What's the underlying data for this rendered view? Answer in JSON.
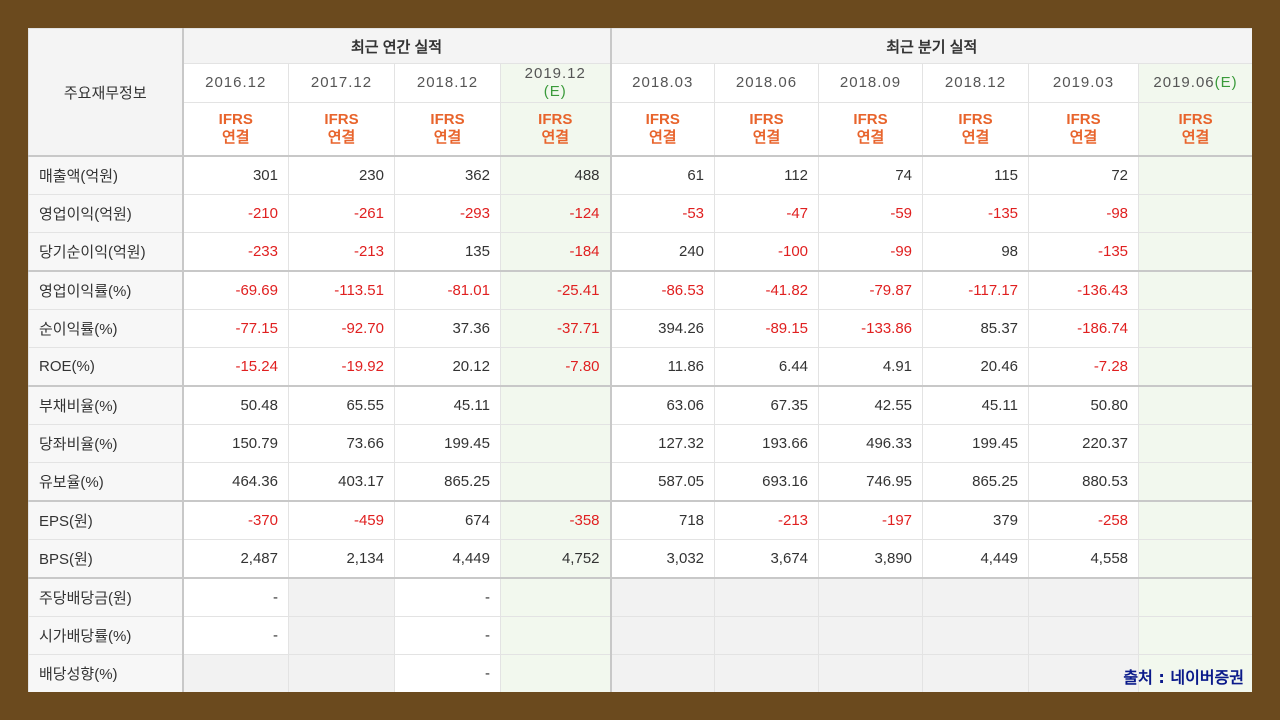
{
  "header": {
    "label": "주요재무정보",
    "annual_title": "최근 연간 실적",
    "quarterly_title": "최근 분기 실적",
    "annual_periods": [
      {
        "label": "2016.12",
        "est": ""
      },
      {
        "label": "2017.12",
        "est": ""
      },
      {
        "label": "2018.12",
        "est": ""
      },
      {
        "label": "2019.12",
        "est": "(E)"
      }
    ],
    "quarterly_periods": [
      {
        "label": "2018.03",
        "est": ""
      },
      {
        "label": "2018.06",
        "est": ""
      },
      {
        "label": "2018.09",
        "est": ""
      },
      {
        "label": "2018.12",
        "est": ""
      },
      {
        "label": "2019.03",
        "est": ""
      },
      {
        "label": "2019.06",
        "est": "(E)"
      }
    ],
    "ifrs_line1": "IFRS",
    "ifrs_line2": "연결"
  },
  "rows": [
    {
      "label": "매출액(억원)",
      "values": [
        "301",
        "230",
        "362",
        "488",
        "61",
        "112",
        "74",
        "115",
        "72",
        ""
      ]
    },
    {
      "label": "영업이익(억원)",
      "values": [
        "-210",
        "-261",
        "-293",
        "-124",
        "-53",
        "-47",
        "-59",
        "-135",
        "-98",
        ""
      ]
    },
    {
      "label": "당기순이익(억원)",
      "values": [
        "-233",
        "-213",
        "135",
        "-184",
        "240",
        "-100",
        "-99",
        "98",
        "-135",
        ""
      ]
    },
    {
      "label": "영업이익률(%)",
      "values": [
        "-69.69",
        "-113.51",
        "-81.01",
        "-25.41",
        "-86.53",
        "-41.82",
        "-79.87",
        "-117.17",
        "-136.43",
        ""
      ]
    },
    {
      "label": "순이익률(%)",
      "values": [
        "-77.15",
        "-92.70",
        "37.36",
        "-37.71",
        "394.26",
        "-89.15",
        "-133.86",
        "85.37",
        "-186.74",
        ""
      ]
    },
    {
      "label": "ROE(%)",
      "values": [
        "-15.24",
        "-19.92",
        "20.12",
        "-7.80",
        "11.86",
        "6.44",
        "4.91",
        "20.46",
        "-7.28",
        ""
      ]
    },
    {
      "label": "부채비율(%)",
      "values": [
        "50.48",
        "65.55",
        "45.11",
        "",
        "63.06",
        "67.35",
        "42.55",
        "45.11",
        "50.80",
        ""
      ]
    },
    {
      "label": "당좌비율(%)",
      "values": [
        "150.79",
        "73.66",
        "199.45",
        "",
        "127.32",
        "193.66",
        "496.33",
        "199.45",
        "220.37",
        ""
      ]
    },
    {
      "label": "유보율(%)",
      "values": [
        "464.36",
        "403.17",
        "865.25",
        "",
        "587.05",
        "693.16",
        "746.95",
        "865.25",
        "880.53",
        ""
      ]
    },
    {
      "label": "EPS(원)",
      "values": [
        "-370",
        "-459",
        "674",
        "-358",
        "718",
        "-213",
        "-197",
        "379",
        "-258",
        ""
      ]
    },
    {
      "label": "BPS(원)",
      "values": [
        "2,487",
        "2,134",
        "4,449",
        "4,752",
        "3,032",
        "3,674",
        "3,890",
        "4,449",
        "4,558",
        ""
      ]
    },
    {
      "label": "주당배당금(원)",
      "values": [
        "-",
        "",
        "-",
        "",
        "",
        "",
        "",
        "",
        "",
        ""
      ]
    },
    {
      "label": "시가배당률(%)",
      "values": [
        "-",
        "",
        "-",
        "",
        "",
        "",
        "",
        "",
        "",
        ""
      ]
    },
    {
      "label": "배당성향(%)",
      "values": [
        "",
        "",
        "-",
        "",
        "",
        "",
        "",
        "",
        "",
        ""
      ]
    }
  ],
  "source": "출처 : 네이버증권"
}
